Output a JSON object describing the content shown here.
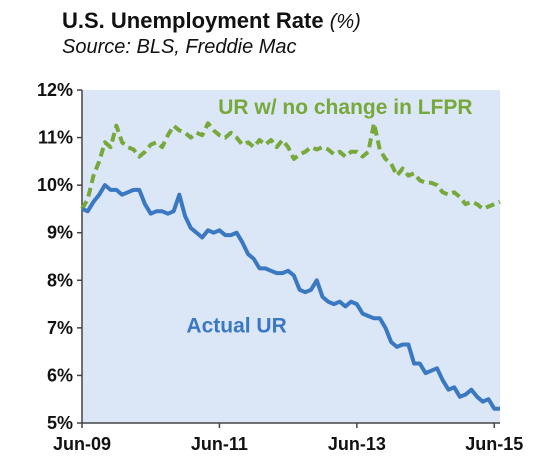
{
  "title": "U.S. Unemployment Rate",
  "title_unit": "(%)",
  "subtitle": "Source: BLS, Freddie Mac",
  "chart_data": {
    "type": "line",
    "title": "U.S. Unemployment Rate (%)",
    "subtitle": "Source: BLS, Freddie Mac",
    "xlabel": "",
    "ylabel": "",
    "x_ticks": [
      "Jun-09",
      "Jun-11",
      "Jun-13",
      "Jun-15"
    ],
    "x_tick_values": [
      0,
      24,
      48,
      72
    ],
    "xlim": [
      0,
      73
    ],
    "y_ticks": [
      "5%",
      "6%",
      "7%",
      "8%",
      "9%",
      "10%",
      "11%",
      "12%"
    ],
    "y_tick_values": [
      5,
      6,
      7,
      8,
      9,
      10,
      11,
      12
    ],
    "ylim": [
      5,
      12
    ],
    "grid": false,
    "plot_background": "#dbe7f7",
    "series": [
      {
        "name": "UR w/ no change in LFPR",
        "color": "#77a83a",
        "style": "dashed",
        "x": [
          0,
          1,
          2,
          3,
          4,
          5,
          6,
          7,
          8,
          9,
          10,
          11,
          12,
          13,
          14,
          15,
          16,
          17,
          18,
          19,
          20,
          21,
          22,
          23,
          24,
          25,
          26,
          27,
          28,
          29,
          30,
          31,
          32,
          33,
          34,
          35,
          36,
          37,
          38,
          39,
          40,
          41,
          42,
          43,
          44,
          45,
          46,
          47,
          48,
          49,
          50,
          51,
          52,
          53,
          54,
          55,
          56,
          57,
          58,
          59,
          60,
          61,
          62,
          63,
          64,
          65,
          66,
          67,
          68,
          69,
          70,
          71,
          72,
          73
        ],
        "values": [
          9.5,
          9.7,
          10.2,
          10.5,
          10.9,
          10.8,
          11.25,
          10.9,
          10.8,
          10.75,
          10.6,
          10.7,
          10.85,
          10.9,
          10.8,
          11.05,
          11.25,
          11.15,
          11.1,
          11.0,
          11.1,
          11.05,
          11.3,
          11.15,
          11.05,
          11.0,
          11.1,
          11.0,
          10.85,
          10.9,
          10.8,
          10.95,
          10.85,
          10.95,
          10.8,
          10.95,
          10.8,
          10.55,
          10.65,
          10.7,
          10.8,
          10.75,
          10.8,
          10.75,
          10.65,
          10.7,
          10.6,
          10.7,
          10.7,
          10.6,
          10.7,
          11.3,
          10.75,
          10.55,
          10.45,
          10.2,
          10.35,
          10.2,
          10.25,
          10.1,
          10.05,
          10.05,
          10.0,
          9.85,
          9.8,
          9.85,
          9.75,
          9.6,
          9.65,
          9.6,
          9.5,
          9.55,
          9.6,
          9.65
        ]
      },
      {
        "name": "Actual UR",
        "color": "#3b78c2",
        "style": "solid",
        "x": [
          0,
          1,
          2,
          3,
          4,
          5,
          6,
          7,
          8,
          9,
          10,
          11,
          12,
          13,
          14,
          15,
          16,
          17,
          18,
          19,
          20,
          21,
          22,
          23,
          24,
          25,
          26,
          27,
          28,
          29,
          30,
          31,
          32,
          33,
          34,
          35,
          36,
          37,
          38,
          39,
          40,
          41,
          42,
          43,
          44,
          45,
          46,
          47,
          48,
          49,
          50,
          51,
          52,
          53,
          54,
          55,
          56,
          57,
          58,
          59,
          60,
          61,
          62,
          63,
          64,
          65,
          66,
          67,
          68,
          69,
          70,
          71,
          72,
          73
        ],
        "values": [
          9.5,
          9.45,
          9.65,
          9.8,
          10.0,
          9.9,
          9.9,
          9.8,
          9.85,
          9.9,
          9.9,
          9.6,
          9.4,
          9.45,
          9.45,
          9.4,
          9.45,
          9.8,
          9.35,
          9.1,
          9.0,
          8.9,
          9.05,
          9.0,
          9.05,
          8.95,
          8.95,
          9.0,
          8.8,
          8.55,
          8.45,
          8.25,
          8.25,
          8.2,
          8.15,
          8.15,
          8.2,
          8.1,
          7.8,
          7.75,
          7.8,
          8.0,
          7.65,
          7.55,
          7.5,
          7.55,
          7.45,
          7.55,
          7.5,
          7.3,
          7.25,
          7.2,
          7.2,
          7.0,
          6.7,
          6.6,
          6.65,
          6.65,
          6.25,
          6.25,
          6.05,
          6.1,
          6.15,
          5.9,
          5.7,
          5.75,
          5.55,
          5.6,
          5.7,
          5.55,
          5.45,
          5.5,
          5.3,
          5.3
        ]
      }
    ],
    "annotations": [
      {
        "text": "UR w/ no change in LFPR",
        "x": 46,
        "y": 11.5
      },
      {
        "text": "Actual UR",
        "x": 27,
        "y": 6.9
      }
    ]
  }
}
